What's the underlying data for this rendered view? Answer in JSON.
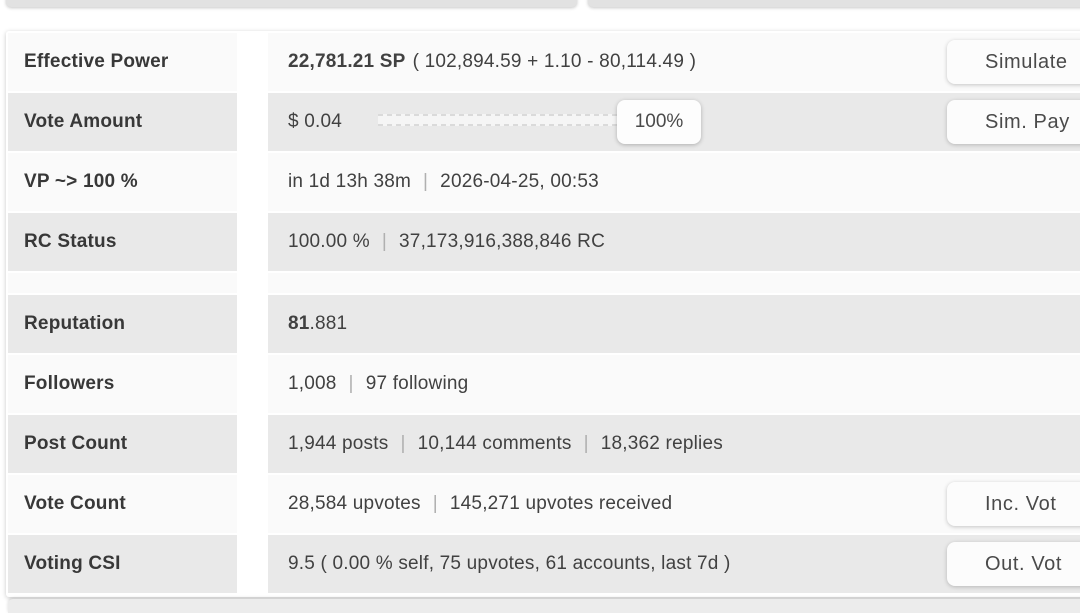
{
  "separator": "|",
  "account_table": {
    "rows": {
      "effective_power": {
        "label": "Effective Power",
        "sp": "22,781.21 SP",
        "breakdown": "( 102,894.59 + 1.10 - 80,114.49 )"
      },
      "vote_amount": {
        "label": "Vote Amount",
        "value": "$ 0.04",
        "slider_percent": "100%"
      },
      "vp_recharge": {
        "label": "VP ~> 100 %",
        "time_remaining": "in 1d 13h 38m",
        "datetime": "2026-04-25, 00:53"
      },
      "rc_status": {
        "label": "RC Status",
        "percent": "100.00 %",
        "rc": "37,173,916,388,846 RC"
      },
      "reputation": {
        "label": "Reputation",
        "int_part": "81",
        "frac_part": ".881"
      },
      "followers": {
        "label": "Followers",
        "count": "1,008",
        "following": "97 following"
      },
      "post_count": {
        "label": "Post Count",
        "posts": "1,944 posts",
        "comments": "10,144 comments",
        "replies": "18,362 replies"
      },
      "vote_count": {
        "label": "Vote Count",
        "upvotes": "28,584 upvotes",
        "received": "145,271 upvotes received"
      },
      "voting_csi": {
        "label": "Voting CSI",
        "value": "9.5 ( 0.00 % self, 75 upvotes, 61 accounts, last 7d )"
      }
    },
    "buttons": {
      "simulate": "Simulate",
      "sim_payout": "Sim. Pay",
      "inc_votes": "Inc. Vot",
      "out_votes": "Out. Vot"
    }
  }
}
